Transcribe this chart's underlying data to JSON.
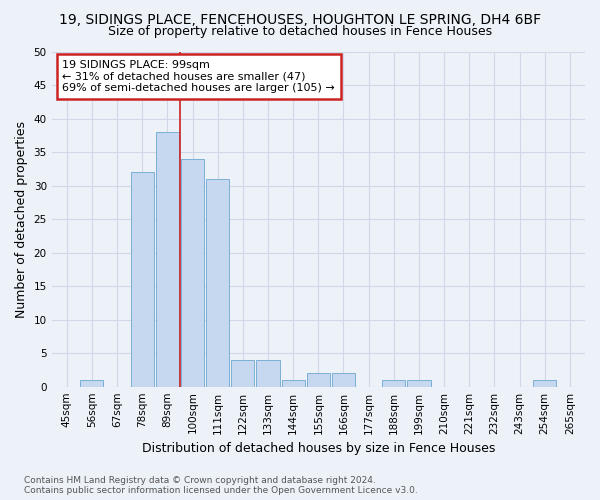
{
  "title": "19, SIDINGS PLACE, FENCEHOUSES, HOUGHTON LE SPRING, DH4 6BF",
  "subtitle": "Size of property relative to detached houses in Fence Houses",
  "xlabel": "Distribution of detached houses by size in Fence Houses",
  "ylabel": "Number of detached properties",
  "footer_line1": "Contains HM Land Registry data © Crown copyright and database right 2024.",
  "footer_line2": "Contains public sector information licensed under the Open Government Licence v3.0.",
  "bin_labels": [
    "45sqm",
    "56sqm",
    "67sqm",
    "78sqm",
    "89sqm",
    "100sqm",
    "111sqm",
    "122sqm",
    "133sqm",
    "144sqm",
    "155sqm",
    "166sqm",
    "177sqm",
    "188sqm",
    "199sqm",
    "210sqm",
    "221sqm",
    "232sqm",
    "243sqm",
    "254sqm",
    "265sqm"
  ],
  "values": [
    0,
    1,
    0,
    32,
    38,
    34,
    31,
    4,
    4,
    1,
    2,
    2,
    0,
    1,
    1,
    0,
    0,
    0,
    0,
    1,
    0
  ],
  "bar_color": "#c5d8ef",
  "bar_edge_color": "#7bafd4",
  "vline_color": "#cc2222",
  "vline_index": 5,
  "ylim": [
    0,
    50
  ],
  "yticks": [
    0,
    5,
    10,
    15,
    20,
    25,
    30,
    35,
    40,
    45,
    50
  ],
  "annotation_text": "19 SIDINGS PLACE: 99sqm\n← 31% of detached houses are smaller (47)\n69% of semi-detached houses are larger (105) →",
  "annotation_box_color": "#ffffff",
  "annotation_box_edge_color": "#cc2222",
  "grid_color": "#d0d8e8",
  "background_color": "#edf2f9",
  "title_fontsize": 10,
  "subtitle_fontsize": 9,
  "tick_fontsize": 7.5,
  "ylabel_fontsize": 9,
  "xlabel_fontsize": 9,
  "footer_fontsize": 6.5,
  "annotation_fontsize": 8
}
